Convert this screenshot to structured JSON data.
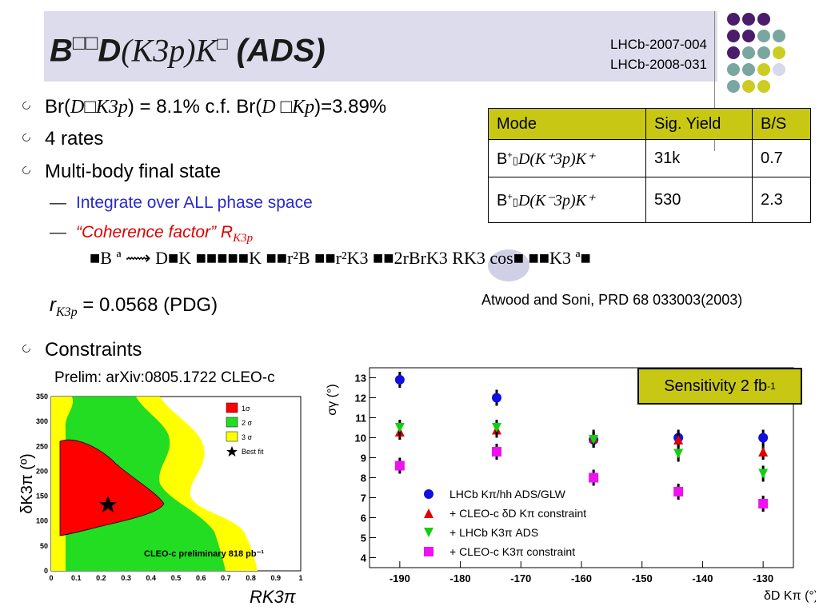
{
  "title": {
    "b_part": "B",
    "garbled1": "□□",
    "d_part": "D",
    "paren": "(K3p)K",
    "garbled2": "□",
    "ads": " (ADS)"
  },
  "refs": [
    "LHCb-2007-004",
    "LHCb-2008-031"
  ],
  "bullets": [
    {
      "text_pre": "Br(",
      "mid": "D□K3p",
      "text_post": ") = 8.1% c.f. Br(",
      "mid2": "D □Kp",
      "end": ")=3.89%"
    },
    {
      "text": "4 rates"
    },
    {
      "text": "Multi-body final state"
    }
  ],
  "subs": [
    {
      "text": "Integrate over ALL phase space",
      "color": "#2a2acc"
    },
    {
      "text": "“Coherence factor” R",
      "subscript": "K3p",
      "color": "#e00000"
    }
  ],
  "formula": "■B ª ⟿ D■K ■■■■■K ■■r²B ■■r²K3 ■■2rBrK3 RK3 cos■ ■■K3 ª■",
  "rk3p": {
    "pre": "r",
    "sub": "K3p",
    "post": " = 0.0568 (PDG)"
  },
  "citation": "Atwood and Soni, PRD 68 033003(2003)",
  "constraints": "Constraints",
  "prelim": "Prelim: arXiv:0805.1722 CLEO-c",
  "table": {
    "headers": [
      "Mode",
      "Sig. Yield",
      "B/S"
    ],
    "rows": [
      {
        "mode_pre": "B",
        "mode_post": "D(K⁺3p)K⁺",
        "yield": "31k",
        "bs": "0.7"
      },
      {
        "mode_pre": "B",
        "mode_post": "D(K⁻3p)K⁺",
        "yield": "530",
        "bs": "2.3"
      }
    ]
  },
  "sensitivity": {
    "text": "Sensitivity 2 fb",
    "sup": "-1"
  },
  "left_plot": {
    "ylabel": "δK3π (º)",
    "xlabel": "RK3π",
    "legend": [
      "1σ",
      "2 σ",
      "3 σ",
      "Best fit"
    ],
    "note": "CLEO-c preliminary 818 pb⁻¹",
    "yticks": [
      "0",
      "50",
      "100",
      "150",
      "200",
      "250",
      "300",
      "350"
    ],
    "xticks": [
      "0",
      "0.1",
      "0.2",
      "0.3",
      "0.4",
      "0.5",
      "0.6",
      "0.7",
      "0.8",
      "0.9",
      "1"
    ],
    "colors": {
      "s1": "#ff0000",
      "s2": "#00ee00",
      "s3": "#ffff00"
    }
  },
  "chart_data": {
    "type": "scatter",
    "title": "",
    "xlabel": "δD Kπ (°)",
    "ylabel": "σγ (°)",
    "xlim": [
      -195,
      -125
    ],
    "ylim": [
      3.5,
      13.5
    ],
    "xticks": [
      -190,
      -180,
      -170,
      -160,
      -150,
      -140,
      -130
    ],
    "yticks": [
      4,
      5,
      6,
      7,
      8,
      9,
      10,
      11,
      12,
      13
    ],
    "x": [
      -190,
      -174,
      -158,
      -144,
      -130
    ],
    "series": [
      {
        "name": "LHCb Kπ/hh ADS/GLW",
        "marker": "circle",
        "color": "#1010e0",
        "values": [
          12.9,
          12.0,
          9.9,
          10.0,
          10.0
        ]
      },
      {
        "name": "+ CLEO-c δD Kπ constraint",
        "marker": "triangle-up",
        "color": "#e00000",
        "values": [
          10.3,
          10.4,
          10.0,
          9.9,
          9.3
        ]
      },
      {
        "name": "+ LHCb K3π ADS",
        "marker": "triangle-down",
        "color": "#10d010",
        "values": [
          10.5,
          10.5,
          9.9,
          9.2,
          8.2
        ]
      },
      {
        "name": "+ CLEO-c K3π constraint",
        "marker": "square",
        "color": "#f010f0",
        "values": [
          8.6,
          9.3,
          8.0,
          7.3,
          6.7
        ]
      }
    ]
  }
}
